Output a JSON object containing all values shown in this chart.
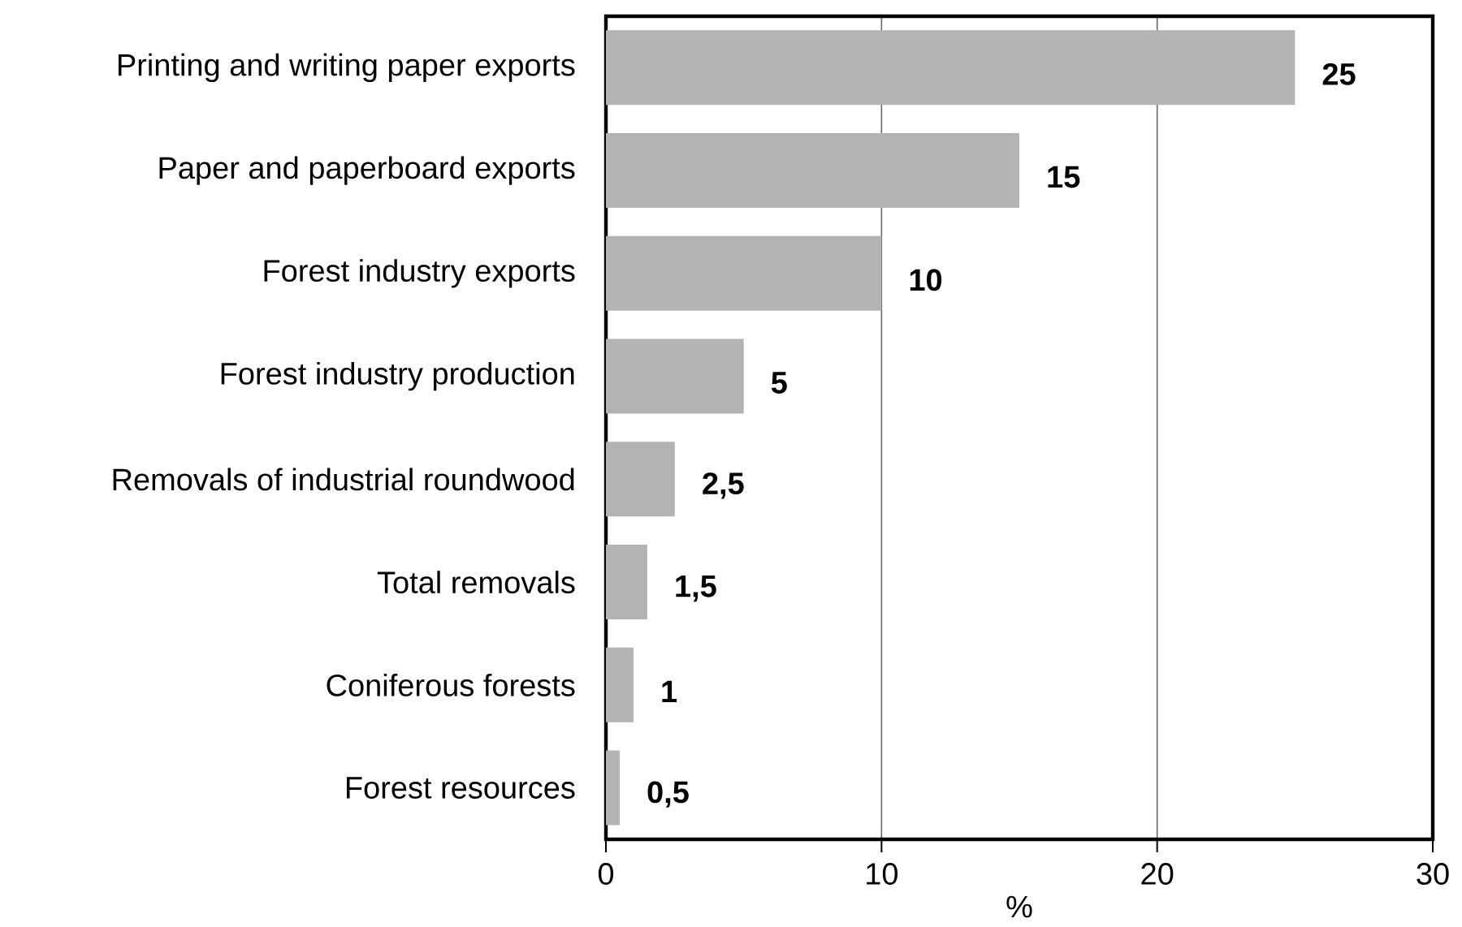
{
  "chart_data": {
    "type": "bar",
    "orientation": "horizontal",
    "xlabel": "%",
    "categories": [
      "Printing and writing paper exports",
      "Paper and paperboard exports",
      "Forest industry exports",
      "Forest industry production",
      "Removals of industrial roundwood",
      "Total removals",
      "Coniferous forests",
      "Forest resources"
    ],
    "values": [
      25,
      15,
      10,
      5,
      2.5,
      1.5,
      1,
      0.5
    ],
    "value_labels": [
      "25",
      "15",
      "10",
      "5",
      "2,5",
      "1,5",
      "1",
      "0,5"
    ],
    "color": "#b3b3b3",
    "xlim": [
      0,
      30
    ],
    "xticks": [
      0,
      10,
      20,
      30
    ],
    "grid": "x"
  }
}
